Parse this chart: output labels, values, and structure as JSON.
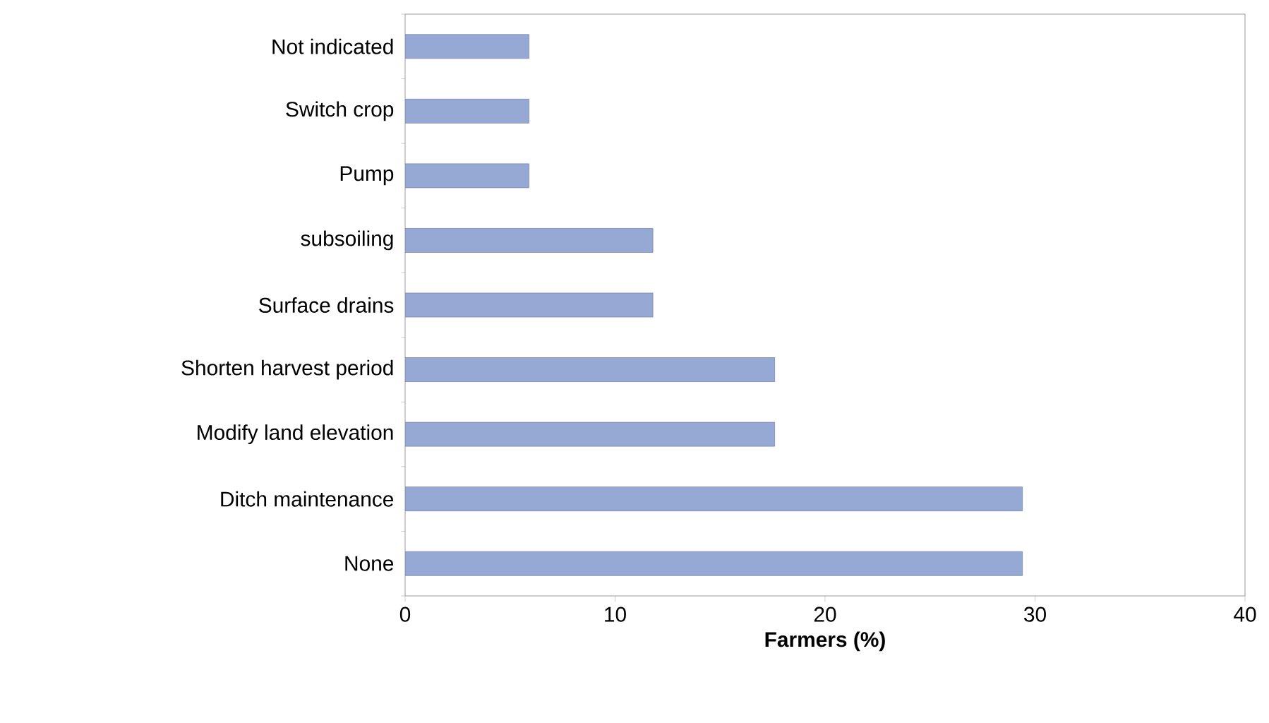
{
  "chart_data": {
    "type": "bar",
    "orientation": "horizontal",
    "xlabel": "Farmers (%)",
    "categories": [
      "Not indicated",
      "Switch crop",
      "Pump",
      "subsoiling",
      "Surface drains",
      "Shorten harvest period",
      "Modify land elevation",
      "Ditch maintenance",
      "None"
    ],
    "values": [
      5.9,
      5.9,
      5.9,
      11.8,
      11.8,
      17.6,
      17.6,
      29.4,
      29.4
    ],
    "color": "#95a9d4",
    "xlim": [
      0,
      40
    ],
    "xticks": [
      0,
      10,
      20,
      30,
      40
    ],
    "grid": false
  }
}
